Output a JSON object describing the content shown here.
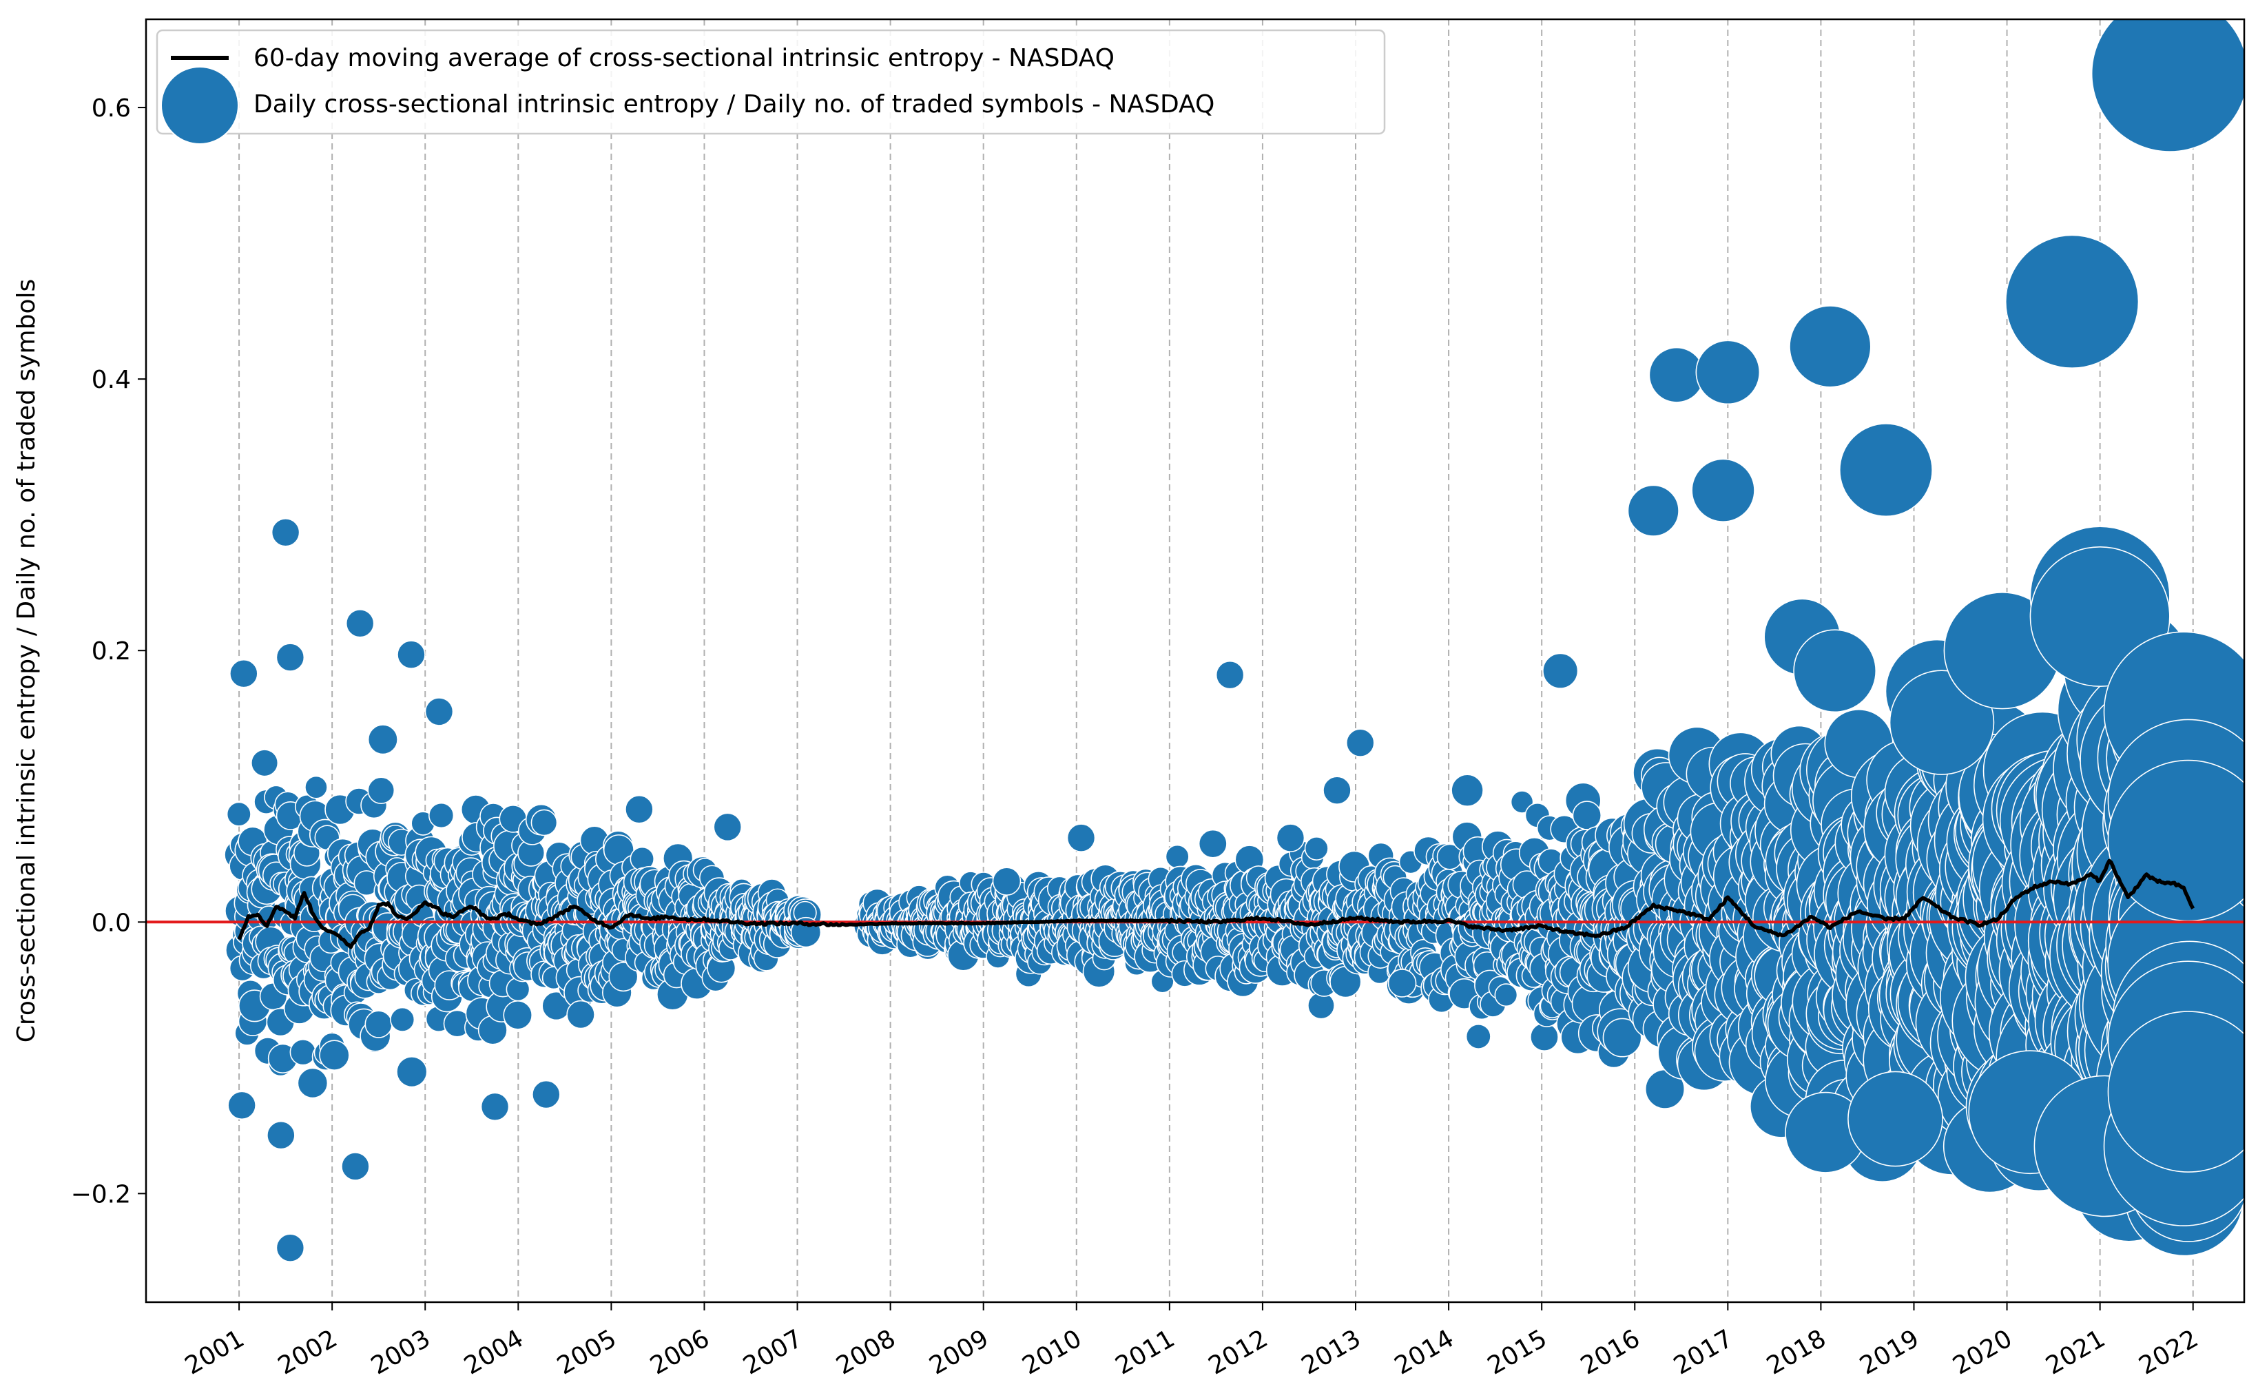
{
  "chart_data": {
    "type": "scatter",
    "title": "",
    "xlabel": "",
    "ylabel": "Cross-sectional intrinsic entropy / Daily no. of traded symbols",
    "xlim": [
      2000.0,
      2022.55
    ],
    "ylim": [
      -0.28,
      0.665
    ],
    "x_ticks": [
      "2001",
      "2002",
      "2003",
      "2004",
      "2005",
      "2006",
      "2007",
      "2008",
      "2009",
      "2010",
      "2011",
      "2012",
      "2013",
      "2014",
      "2015",
      "2016",
      "2017",
      "2018",
      "2019",
      "2020",
      "2021",
      "2022"
    ],
    "y_ticks": [
      {
        "value": -0.2,
        "label": "−0.2"
      },
      {
        "value": 0.0,
        "label": "0.0"
      },
      {
        "value": 0.2,
        "label": "0.2"
      },
      {
        "value": 0.4,
        "label": "0.4"
      },
      {
        "value": 0.6,
        "label": "0.6"
      }
    ],
    "grid": "vertical dashed at each year",
    "reference_line": {
      "y": 0.0,
      "color": "#e31a1c"
    },
    "legend": {
      "placement": "upper-left",
      "entries": [
        "60-day moving average of cross-sectional intrinsic entropy - NASDAQ",
        "Daily cross-sectional intrinsic entropy / Daily no. of traded symbols - NASDAQ"
      ]
    },
    "series": [
      {
        "name": "Daily cross-sectional intrinsic entropy / Daily no. of traded symbols - NASDAQ",
        "kind": "bubble",
        "color": "#1f77b4",
        "highlighted_points": [
          {
            "x": 2001.03,
            "y": -0.135
          },
          {
            "x": 2001.05,
            "y": 0.183
          },
          {
            "x": 2001.5,
            "y": 0.287
          },
          {
            "x": 2001.55,
            "y": -0.24
          },
          {
            "x": 2001.55,
            "y": 0.195
          },
          {
            "x": 2001.45,
            "y": -0.157
          },
          {
            "x": 2002.3,
            "y": 0.22
          },
          {
            "x": 2002.25,
            "y": -0.18
          },
          {
            "x": 2002.85,
            "y": 0.197
          },
          {
            "x": 2003.15,
            "y": 0.155
          },
          {
            "x": 2003.75,
            "y": -0.136
          },
          {
            "x": 2004.3,
            "y": -0.127
          },
          {
            "x": 2005.3,
            "y": 0.083
          },
          {
            "x": 2006.25,
            "y": 0.07
          },
          {
            "x": 2009.25,
            "y": 0.03
          },
          {
            "x": 2010.05,
            "y": 0.062
          },
          {
            "x": 2011.65,
            "y": 0.182
          },
          {
            "x": 2012.3,
            "y": 0.062
          },
          {
            "x": 2012.8,
            "y": 0.097
          },
          {
            "x": 2013.05,
            "y": 0.132
          },
          {
            "x": 2013.5,
            "y": -0.045
          },
          {
            "x": 2014.2,
            "y": 0.097
          },
          {
            "x": 2015.2,
            "y": 0.185
          },
          {
            "x": 2016.2,
            "y": 0.303
          },
          {
            "x": 2016.45,
            "y": 0.403
          },
          {
            "x": 2016.95,
            "y": 0.318
          },
          {
            "x": 2017.0,
            "y": 0.405
          },
          {
            "x": 2017.8,
            "y": 0.21
          },
          {
            "x": 2018.05,
            "y": -0.155
          },
          {
            "x": 2018.1,
            "y": 0.424
          },
          {
            "x": 2018.15,
            "y": 0.185
          },
          {
            "x": 2018.7,
            "y": 0.333
          },
          {
            "x": 2018.8,
            "y": -0.145
          },
          {
            "x": 2019.25,
            "y": 0.17
          },
          {
            "x": 2019.3,
            "y": 0.147
          },
          {
            "x": 2019.95,
            "y": 0.2
          },
          {
            "x": 2020.25,
            "y": -0.14
          },
          {
            "x": 2020.7,
            "y": 0.457
          },
          {
            "x": 2021.0,
            "y": 0.24
          },
          {
            "x": 2021.0,
            "y": 0.225
          },
          {
            "x": 2021.05,
            "y": -0.165
          },
          {
            "x": 2021.75,
            "y": 0.625
          },
          {
            "x": 2021.9,
            "y": 0.155
          },
          {
            "x": 2021.95,
            "y": 0.09
          },
          {
            "x": 2021.95,
            "y": 0.06
          },
          {
            "x": 2021.9,
            "y": -0.165
          },
          {
            "x": 2021.95,
            "y": -0.088
          },
          {
            "x": 2021.95,
            "y": -0.125
          }
        ]
      },
      {
        "name": "60-day moving average of cross-sectional intrinsic entropy - NASDAQ",
        "kind": "line",
        "color": "#000000",
        "x": [
          2001.0,
          2001.1,
          2001.2,
          2001.3,
          2001.4,
          2001.5,
          2001.6,
          2001.7,
          2001.8,
          2001.9,
          2002.0,
          2002.1,
          2002.2,
          2002.3,
          2002.4,
          2002.5,
          2002.6,
          2002.7,
          2002.8,
          2002.9,
          2003.0,
          2003.1,
          2003.2,
          2003.3,
          2003.4,
          2003.5,
          2003.6,
          2003.7,
          2003.8,
          2003.9,
          2004.0,
          2004.2,
          2004.4,
          2004.6,
          2004.8,
          2005.0,
          2005.2,
          2005.4,
          2005.6,
          2005.8,
          2006.0,
          2006.5,
          2007.0,
          2007.5,
          2008.0,
          2009.0,
          2010.0,
          2011.0,
          2011.5,
          2012.0,
          2012.5,
          2013.0,
          2013.5,
          2014.0,
          2014.3,
          2014.6,
          2015.0,
          2015.3,
          2015.6,
          2015.9,
          2016.2,
          2016.5,
          2016.8,
          2017.0,
          2017.3,
          2017.6,
          2017.9,
          2018.1,
          2018.4,
          2018.7,
          2018.9,
          2019.1,
          2019.4,
          2019.7,
          2019.9,
          2020.1,
          2020.3,
          2020.5,
          2020.7,
          2020.9,
          2021.0,
          2021.1,
          2021.3,
          2021.5,
          2021.6,
          2021.8,
          2021.9,
          2022.0
        ],
        "y": [
          -0.012,
          0.004,
          0.006,
          -0.003,
          0.012,
          0.008,
          0.003,
          0.022,
          0.005,
          -0.004,
          -0.008,
          -0.012,
          -0.018,
          -0.008,
          -0.004,
          0.012,
          0.014,
          0.004,
          0.002,
          0.008,
          0.014,
          0.012,
          0.006,
          0.004,
          0.008,
          0.012,
          0.006,
          0.002,
          0.004,
          0.006,
          0.002,
          -0.002,
          0.004,
          0.012,
          0.002,
          -0.004,
          0.006,
          0.002,
          0.004,
          0.002,
          0.002,
          -0.001,
          -0.001,
          -0.002,
          -0.001,
          -0.001,
          0.001,
          0.001,
          0.0,
          0.003,
          -0.002,
          0.003,
          0.0,
          0.001,
          -0.004,
          -0.006,
          -0.003,
          -0.008,
          -0.01,
          -0.004,
          0.012,
          0.008,
          0.002,
          0.018,
          -0.004,
          -0.01,
          0.004,
          -0.004,
          0.008,
          0.002,
          0.003,
          0.018,
          0.004,
          -0.002,
          0.002,
          0.018,
          0.026,
          0.03,
          0.028,
          0.035,
          0.03,
          0.046,
          0.018,
          0.035,
          0.03,
          0.028,
          0.025,
          0.01
        ]
      }
    ]
  }
}
